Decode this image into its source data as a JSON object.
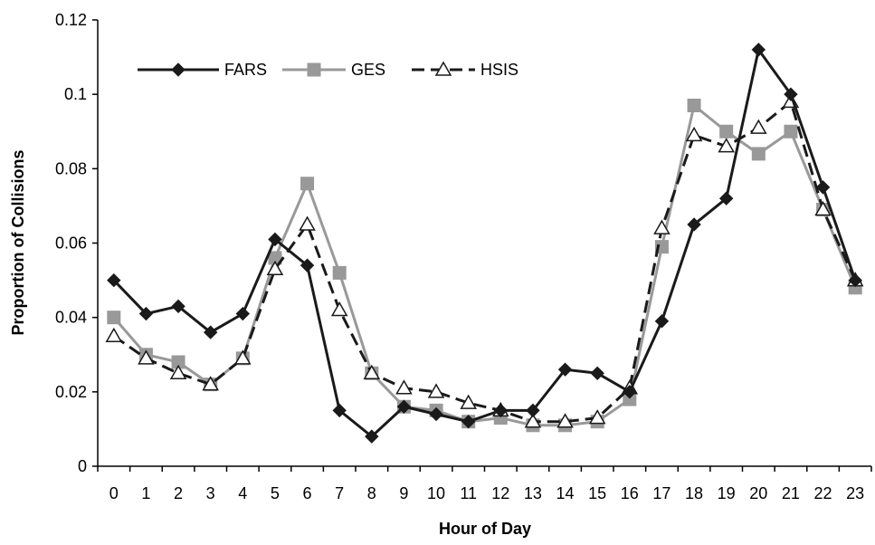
{
  "chart_data": {
    "type": "line",
    "title": "",
    "xlabel": "Hour of Day",
    "ylabel": "Proportion of Collisions",
    "x": [
      0,
      1,
      2,
      3,
      4,
      5,
      6,
      7,
      8,
      9,
      10,
      11,
      12,
      13,
      14,
      15,
      16,
      17,
      18,
      19,
      20,
      21,
      22,
      23
    ],
    "x_tick_labels": [
      "0",
      "1",
      "2",
      "3",
      "4",
      "5",
      "6",
      "7",
      "8",
      "9",
      "10",
      "11",
      "12",
      "13",
      "14",
      "15",
      "16",
      "17",
      "18",
      "19",
      "20",
      "21",
      "22",
      "23"
    ],
    "ylim": [
      0,
      0.12
    ],
    "y_ticks": [
      0,
      0.02,
      0.04,
      0.06,
      0.08,
      0.1,
      0.12
    ],
    "y_tick_labels": [
      "0",
      "0.02",
      "0.04",
      "0.06",
      "0.08",
      "0.1",
      "0.12"
    ],
    "grid": false,
    "legend_position": "top-left",
    "series": [
      {
        "name": "FARS",
        "color": "#1a1a1a",
        "line_style": "solid",
        "marker": "diamond-filled",
        "values": [
          0.05,
          0.041,
          0.043,
          0.036,
          0.041,
          0.061,
          0.054,
          0.015,
          0.008,
          0.016,
          0.014,
          0.012,
          0.015,
          0.015,
          0.026,
          0.025,
          0.02,
          0.039,
          0.065,
          0.072,
          0.112,
          0.1,
          0.075,
          0.05
        ]
      },
      {
        "name": "GES",
        "color": "#999999",
        "line_style": "solid",
        "marker": "square-filled",
        "values": [
          0.04,
          0.03,
          0.028,
          0.022,
          0.029,
          0.056,
          0.076,
          0.052,
          0.025,
          0.016,
          0.015,
          0.012,
          0.013,
          0.011,
          0.011,
          0.012,
          0.018,
          0.059,
          0.097,
          0.09,
          0.084,
          0.09,
          0.069,
          0.048
        ]
      },
      {
        "name": "HSIS",
        "color": "#1a1a1a",
        "line_style": "dashed",
        "marker": "triangle-open",
        "values": [
          0.035,
          0.029,
          0.025,
          0.022,
          0.029,
          0.053,
          0.065,
          0.042,
          0.025,
          0.021,
          0.02,
          0.017,
          0.015,
          0.012,
          0.012,
          0.013,
          0.021,
          0.064,
          0.089,
          0.086,
          0.091,
          0.098,
          0.069,
          0.05
        ]
      }
    ]
  }
}
